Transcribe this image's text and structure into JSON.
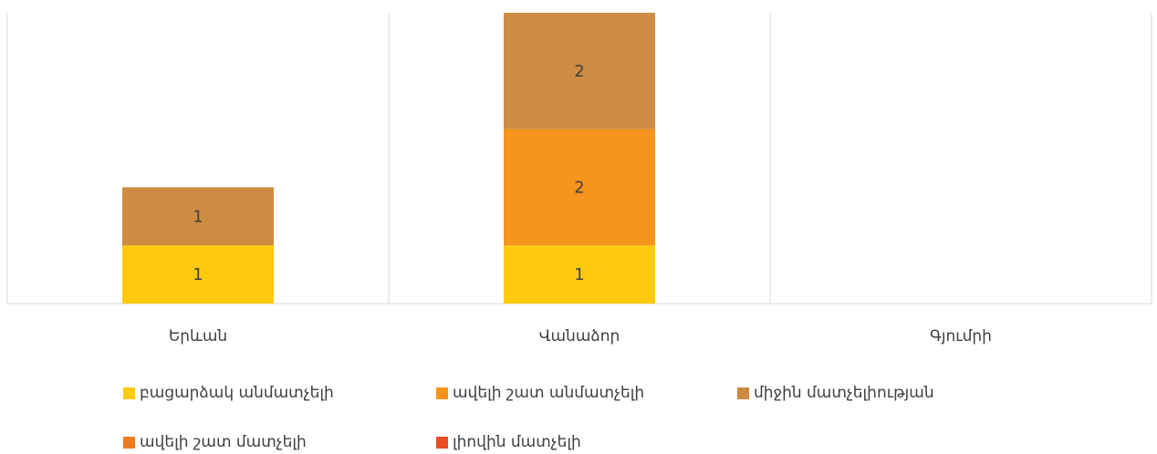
{
  "chart_data": {
    "type": "bar",
    "stacked": true,
    "categories": [
      "Երևան",
      "Վանաձոր",
      "Գյումրի"
    ],
    "series": [
      {
        "name": "բացարձակ անմատչելի",
        "color": "#FFC90E",
        "values": [
          1,
          1,
          0
        ]
      },
      {
        "name": "ավելի շատ անմատչելի",
        "color": "#F7941D",
        "values": [
          0,
          2,
          0
        ]
      },
      {
        "name": "միջին մատչելիության",
        "color": "#CD8C42",
        "values": [
          1,
          2,
          0
        ]
      },
      {
        "name": "ավելի շատ մատչելի",
        "color": "#EF7A1F",
        "values": [
          0,
          0,
          0
        ]
      },
      {
        "name": "լիովին մատչելի",
        "color": "#E94E26",
        "values": [
          0,
          0,
          0
        ]
      }
    ],
    "ylim": [
      0,
      5
    ],
    "grid": false,
    "legend_position": "bottom",
    "title": "",
    "xlabel": "",
    "ylabel": ""
  }
}
